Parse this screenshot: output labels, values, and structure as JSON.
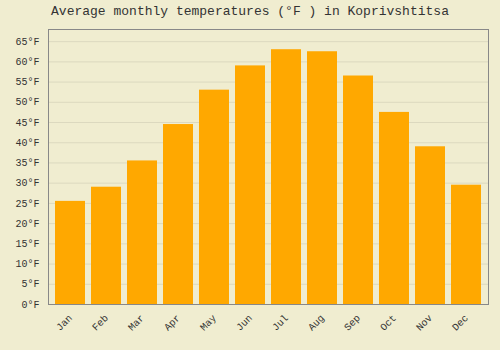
{
  "chart_data": {
    "type": "bar",
    "title": "Average monthly temperatures (°F ) in Koprivshtitsa",
    "categories": [
      "Jan",
      "Feb",
      "Mar",
      "Apr",
      "May",
      "Jun",
      "Jul",
      "Aug",
      "Sep",
      "Oct",
      "Nov",
      "Dec"
    ],
    "values": [
      25.5,
      29.0,
      35.5,
      44.5,
      53.0,
      59.0,
      63.0,
      62.5,
      56.5,
      47.5,
      39.0,
      29.5
    ],
    "color": "#FFA800",
    "ylim": [
      0,
      68
    ],
    "yticks": [
      {
        "value": 0,
        "label": "0°F"
      },
      {
        "value": 5,
        "label": "5°F"
      },
      {
        "value": 10,
        "label": "10°F"
      },
      {
        "value": 15,
        "label": "15°F"
      },
      {
        "value": 20,
        "label": "20°F"
      },
      {
        "value": 25,
        "label": "25°F"
      },
      {
        "value": 30,
        "label": "30°F"
      },
      {
        "value": 35,
        "label": "35°F"
      },
      {
        "value": 40,
        "label": "40°F"
      },
      {
        "value": 45,
        "label": "45°F"
      },
      {
        "value": 50,
        "label": "50°F"
      },
      {
        "value": 55,
        "label": "55°F"
      },
      {
        "value": 60,
        "label": "60°F"
      },
      {
        "value": 65,
        "label": "65°F"
      }
    ],
    "grid": true
  }
}
